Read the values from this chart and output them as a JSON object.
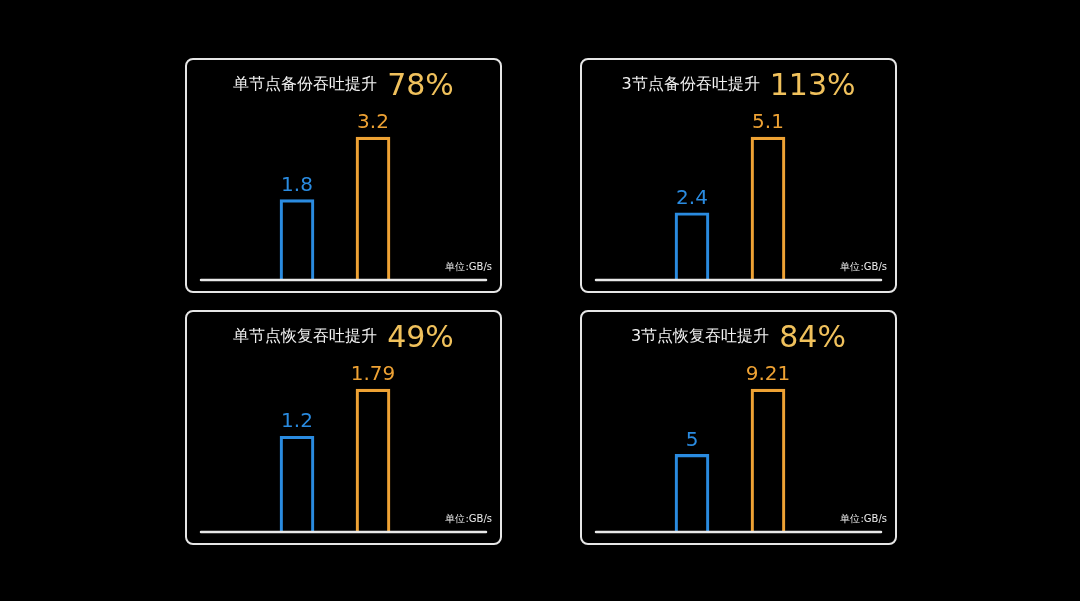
{
  "chart_data": [
    {
      "type": "bar",
      "title": "单节点备份吞吐提升",
      "subtitle": "78%",
      "categories": [
        null,
        null
      ],
      "values": [
        1.8,
        3.2
      ],
      "colors": [
        "#2a8be0",
        "#eea234"
      ],
      "data_labels": true,
      "tick_labels": false,
      "annotations": [
        "单位:GB/s"
      ]
    },
    {
      "type": "bar",
      "title": "3节点备份吞吐提升",
      "subtitle": "113%",
      "categories": [
        null,
        null
      ],
      "values": [
        2.4,
        5.1
      ],
      "colors": [
        "#2a8be0",
        "#eea234"
      ],
      "data_labels": true,
      "tick_labels": false,
      "annotations": [
        "单位:GB/s"
      ]
    },
    {
      "type": "bar",
      "title": "单节点恢复吞吐提升",
      "subtitle": "49%",
      "categories": [
        null,
        null
      ],
      "values": [
        1.2,
        1.79
      ],
      "colors": [
        "#2a8be0",
        "#eea234"
      ],
      "data_labels": true,
      "tick_labels": false,
      "annotations": [
        "单位:GB/s"
      ]
    },
    {
      "type": "bar",
      "title": "3节点恢复吞吐提升",
      "subtitle": "84%",
      "categories": [
        null,
        null
      ],
      "values": [
        5,
        9.21
      ],
      "colors": [
        "#2a8be0",
        "#eea234"
      ],
      "data_labels": true,
      "tick_labels": false,
      "annotations": [
        "单位:GB/s"
      ]
    }
  ]
}
